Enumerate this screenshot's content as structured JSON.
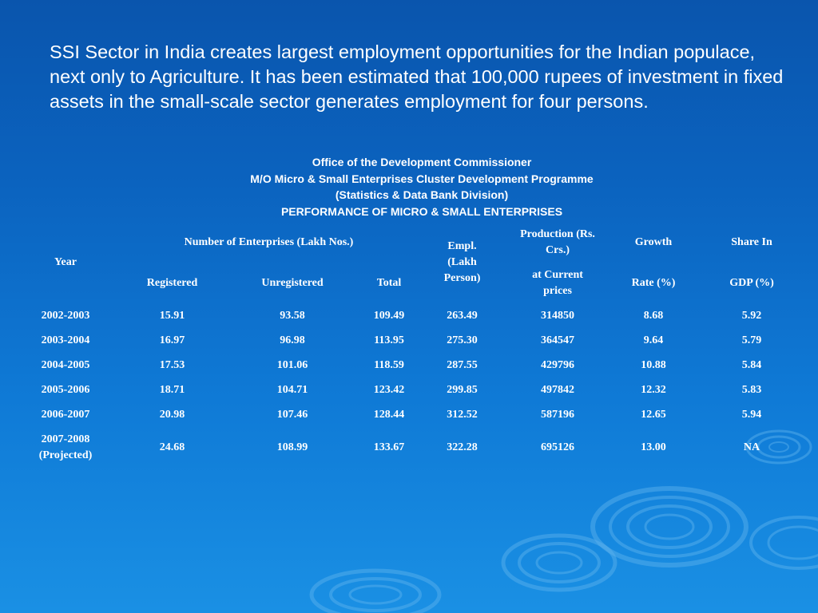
{
  "intro_text": "SSI Sector in India creates largest employment opportunities for the Indian populace, next only to Agriculture. It has been estimated that 100,000 rupees of investment in fixed assets in the small-scale sector generates employment for four persons.",
  "heading": {
    "line1": "Office of the Development Commissioner",
    "line2": "M/O Micro & Small Enterprises Cluster Development Programme",
    "line3": "(Statistics & Data Bank Division)",
    "line4": "PERFORMANCE OF MICRO & SMALL ENTERPRISES"
  },
  "table": {
    "headers": {
      "year": "Year",
      "enterprises_group": "Number of Enterprises (Lakh Nos.)",
      "registered": "Registered",
      "unregistered": "Unregistered",
      "total": "Total",
      "empl": "Empl. (Lakh Person)",
      "production_top": "Production (Rs. Crs.)",
      "production_bottom": "at Current prices",
      "growth_top": "Growth",
      "growth_bottom": "Rate (%)",
      "share_top": "Share In",
      "share_bottom": "GDP (%)"
    },
    "rows": [
      {
        "year": "2002-2003",
        "registered": "15.91",
        "unregistered": "93.58",
        "total": "109.49",
        "empl": "263.49",
        "production": "314850",
        "growth": "8.68",
        "share": "5.92"
      },
      {
        "year": "2003-2004",
        "registered": "16.97",
        "unregistered": "96.98",
        "total": "113.95",
        "empl": "275.30",
        "production": "364547",
        "growth": "9.64",
        "share": "5.79"
      },
      {
        "year": "2004-2005",
        "registered": "17.53",
        "unregistered": "101.06",
        "total": "118.59",
        "empl": "287.55",
        "production": "429796",
        "growth": "10.88",
        "share": "5.84"
      },
      {
        "year": "2005-2006",
        "registered": "18.71",
        "unregistered": "104.71",
        "total": "123.42",
        "empl": "299.85",
        "production": "497842",
        "growth": "12.32",
        "share": "5.83"
      },
      {
        "year": "2006-2007",
        "registered": "20.98",
        "unregistered": "107.46",
        "total": "128.44",
        "empl": "312.52",
        "production": "587196",
        "growth": "12.65",
        "share": "5.94"
      },
      {
        "year": "2007-2008 (Projected)",
        "registered": "24.68",
        "unregistered": "108.99",
        "total": "133.67",
        "empl": "322.28",
        "production": "695126",
        "growth": "13.00",
        "share": "NA"
      }
    ]
  },
  "colors": {
    "background_top": "#0a55ad",
    "background_bottom": "#1a90e4",
    "text": "#ffffff"
  }
}
